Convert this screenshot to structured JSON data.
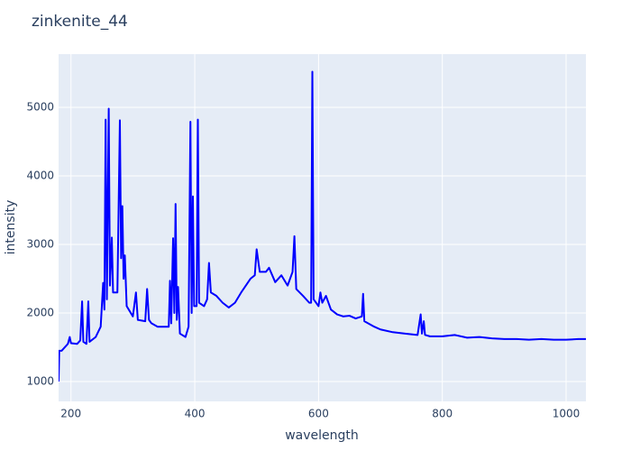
{
  "chart_data": {
    "type": "line",
    "title": "zinkenite_44",
    "x_label": "wavelength",
    "y_label": "intensity",
    "color": "#0000ff",
    "grid": true,
    "xlim": [
      180,
      1032
    ],
    "ylim": [
      711,
      5776
    ],
    "xticks": [
      200,
      400,
      600,
      800,
      1000
    ],
    "yticks": [
      1000,
      2000,
      3000,
      4000,
      5000
    ],
    "x": [
      180,
      181,
      185,
      195,
      198,
      200,
      210,
      215,
      218,
      220,
      225,
      228,
      230,
      240,
      248,
      252,
      254,
      256,
      258,
      261,
      263,
      266,
      268,
      275,
      279,
      281,
      283,
      285,
      287,
      290,
      300,
      305,
      308,
      320,
      323,
      326,
      330,
      340,
      350,
      358,
      360,
      362,
      365,
      367,
      369,
      371,
      373,
      376,
      385,
      390,
      393,
      395,
      397,
      399,
      403,
      405,
      407,
      415,
      420,
      423,
      426,
      435,
      445,
      455,
      465,
      475,
      490,
      497,
      500,
      505,
      515,
      520,
      530,
      540,
      550,
      558,
      561,
      564,
      575,
      585,
      588,
      590,
      592,
      600,
      603,
      606,
      612,
      620,
      630,
      640,
      650,
      660,
      670,
      672,
      674,
      690,
      700,
      720,
      740,
      760,
      765,
      767,
      770,
      772,
      780,
      800,
      820,
      840,
      860,
      880,
      900,
      920,
      940,
      960,
      980,
      1000,
      1020,
      1032
    ],
    "values": [
      1000,
      1450,
      1450,
      1550,
      1650,
      1560,
      1550,
      1600,
      2170,
      1580,
      1550,
      2170,
      1580,
      1650,
      1800,
      2440,
      2050,
      4820,
      2200,
      4980,
      2400,
      3100,
      2300,
      2300,
      4810,
      2800,
      3560,
      2500,
      2840,
      2100,
      1950,
      2300,
      1900,
      1880,
      2350,
      1900,
      1850,
      1800,
      1800,
      1800,
      2470,
      1850,
      3090,
      2000,
      3590,
      1900,
      2380,
      1700,
      1650,
      1800,
      4790,
      2000,
      3700,
      2100,
      2100,
      4820,
      2150,
      2100,
      2200,
      2730,
      2300,
      2250,
      2150,
      2080,
      2150,
      2300,
      2500,
      2550,
      2930,
      2600,
      2600,
      2660,
      2450,
      2550,
      2400,
      2600,
      3120,
      2350,
      2250,
      2150,
      2150,
      5520,
      2200,
      2100,
      2300,
      2150,
      2250,
      2050,
      1980,
      1950,
      1960,
      1920,
      1950,
      2280,
      1880,
      1800,
      1760,
      1720,
      1700,
      1680,
      1980,
      1700,
      1880,
      1680,
      1660,
      1660,
      1680,
      1640,
      1650,
      1630,
      1620,
      1620,
      1610,
      1620,
      1610,
      1610,
      1620,
      1620
    ]
  }
}
